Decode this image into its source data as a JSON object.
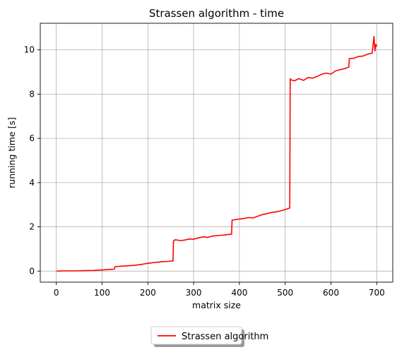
{
  "chart_data": {
    "type": "line",
    "title": "Strassen algorithm - time",
    "xlabel": "matrix size",
    "ylabel": "running time [s]",
    "xlim": [
      -35,
      735
    ],
    "ylim": [
      -0.5,
      11.2
    ],
    "xticks": [
      0,
      100,
      200,
      300,
      400,
      500,
      600,
      700
    ],
    "yticks": [
      0,
      2,
      4,
      6,
      8,
      10
    ],
    "grid": true,
    "legend_position": "below-center",
    "series": [
      {
        "name": "Strassen algorithm",
        "color": "#ff0000",
        "x": [
          1,
          20,
          40,
          60,
          80,
          100,
          115,
          127,
          128,
          140,
          155,
          170,
          185,
          193,
          200,
          210,
          220,
          230,
          245,
          255,
          256,
          260,
          270,
          280,
          290,
          300,
          310,
          320,
          330,
          340,
          350,
          360,
          370,
          383,
          384,
          390,
          400,
          410,
          420,
          430,
          440,
          450,
          460,
          470,
          480,
          490,
          500,
          510,
          511,
          512,
          520,
          530,
          540,
          550,
          560,
          570,
          580,
          590,
          600,
          610,
          620,
          630,
          639,
          640,
          650,
          660,
          670,
          680,
          690,
          694,
          696,
          698,
          700
        ],
        "y": [
          0.0,
          0.01,
          0.01,
          0.02,
          0.03,
          0.05,
          0.07,
          0.09,
          0.2,
          0.22,
          0.24,
          0.26,
          0.3,
          0.33,
          0.35,
          0.38,
          0.4,
          0.42,
          0.44,
          0.46,
          1.36,
          1.42,
          1.38,
          1.4,
          1.45,
          1.44,
          1.5,
          1.55,
          1.52,
          1.58,
          1.6,
          1.62,
          1.64,
          1.67,
          2.3,
          2.32,
          2.35,
          2.38,
          2.42,
          2.4,
          2.48,
          2.55,
          2.6,
          2.65,
          2.68,
          2.72,
          2.78,
          2.85,
          8.7,
          8.65,
          8.6,
          8.7,
          8.62,
          8.75,
          8.72,
          8.8,
          8.9,
          8.95,
          8.9,
          9.05,
          9.1,
          9.15,
          9.22,
          9.6,
          9.62,
          9.7,
          9.72,
          9.8,
          9.85,
          10.6,
          9.95,
          10.25,
          10.15
        ]
      }
    ]
  }
}
